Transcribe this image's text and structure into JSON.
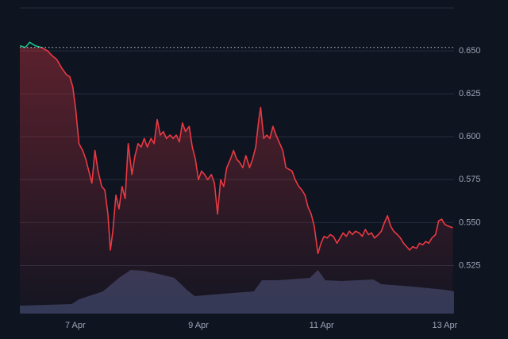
{
  "chart_data": {
    "type": "line",
    "xlim": [
      6.1,
      13.15
    ],
    "xticks": [
      {
        "value": 7,
        "label": "7 Apr"
      },
      {
        "value": 9,
        "label": "9 Apr"
      },
      {
        "value": 11,
        "label": "11 Apr"
      },
      {
        "value": 13,
        "label": "13 Apr"
      }
    ],
    "ylim": [
      0.497,
      0.675
    ],
    "yticks": [
      {
        "value": 0.525,
        "label": "0.525"
      },
      {
        "value": 0.55,
        "label": "0.550"
      },
      {
        "value": 0.575,
        "label": "0.575"
      },
      {
        "value": 0.6,
        "label": "0.600"
      },
      {
        "value": 0.625,
        "label": "0.625"
      },
      {
        "value": 0.65,
        "label": "0.650"
      }
    ],
    "grid": true,
    "reference": 0.652,
    "up_color": "#16c784",
    "series": [
      {
        "color": "#ea3943",
        "x": [
          6.1,
          6.19,
          6.26,
          6.35,
          6.45,
          6.55,
          6.63,
          6.7,
          6.78,
          6.86,
          6.91,
          6.96,
          7.01,
          7.06,
          7.12,
          7.17,
          7.22,
          7.27,
          7.32,
          7.37,
          7.43,
          7.48,
          7.53,
          7.57,
          7.61,
          7.66,
          7.71,
          7.76,
          7.81,
          7.86,
          7.92,
          7.97,
          8.02,
          8.07,
          8.12,
          8.17,
          8.23,
          8.28,
          8.33,
          8.38,
          8.43,
          8.48,
          8.54,
          8.59,
          8.64,
          8.69,
          8.74,
          8.79,
          8.85,
          8.9,
          8.95,
          9.0,
          9.05,
          9.1,
          9.15,
          9.21,
          9.26,
          9.31,
          9.36,
          9.41,
          9.46,
          9.52,
          9.57,
          9.62,
          9.67,
          9.72,
          9.77,
          9.83,
          9.88,
          9.93,
          9.98,
          10.01,
          10.06,
          10.11,
          10.16,
          10.21,
          10.26,
          10.32,
          10.37,
          10.42,
          10.47,
          10.52,
          10.57,
          10.63,
          10.68,
          10.73,
          10.78,
          10.83,
          10.88,
          10.94,
          10.99,
          11.04,
          11.09,
          11.14,
          11.19,
          11.25,
          11.3,
          11.35,
          11.4,
          11.45,
          11.5,
          11.55,
          11.61,
          11.66,
          11.71,
          11.76,
          11.81,
          11.86,
          11.92,
          11.97,
          12.02,
          12.07,
          12.12,
          12.17,
          12.23,
          12.28,
          12.33,
          12.38,
          12.43,
          12.48,
          12.54,
          12.59,
          12.64,
          12.69,
          12.74,
          12.79,
          12.85,
          12.9,
          12.95,
          13.0,
          13.05,
          13.13
        ],
        "values": [
          0.653,
          0.652,
          0.655,
          0.653,
          0.652,
          0.65,
          0.647,
          0.645,
          0.64,
          0.636,
          0.635,
          0.629,
          0.615,
          0.596,
          0.592,
          0.587,
          0.58,
          0.573,
          0.592,
          0.58,
          0.571,
          0.569,
          0.555,
          0.534,
          0.545,
          0.566,
          0.558,
          0.571,
          0.564,
          0.596,
          0.578,
          0.589,
          0.596,
          0.594,
          0.599,
          0.594,
          0.599,
          0.596,
          0.61,
          0.601,
          0.603,
          0.599,
          0.601,
          0.599,
          0.601,
          0.597,
          0.608,
          0.603,
          0.606,
          0.594,
          0.587,
          0.575,
          0.58,
          0.578,
          0.575,
          0.578,
          0.573,
          0.555,
          0.575,
          0.571,
          0.582,
          0.587,
          0.592,
          0.587,
          0.585,
          0.582,
          0.589,
          0.582,
          0.587,
          0.594,
          0.61,
          0.617,
          0.599,
          0.601,
          0.599,
          0.606,
          0.601,
          0.596,
          0.592,
          0.582,
          0.581,
          0.58,
          0.575,
          0.571,
          0.569,
          0.566,
          0.559,
          0.555,
          0.548,
          0.532,
          0.538,
          0.542,
          0.541,
          0.543,
          0.542,
          0.538,
          0.541,
          0.544,
          0.542,
          0.545,
          0.543,
          0.545,
          0.544,
          0.542,
          0.546,
          0.543,
          0.544,
          0.541,
          0.543,
          0.545,
          0.55,
          0.554,
          0.548,
          0.545,
          0.543,
          0.541,
          0.538,
          0.536,
          0.534,
          0.536,
          0.535,
          0.538,
          0.537,
          0.539,
          0.538,
          0.541,
          0.543,
          0.551,
          0.552,
          0.549,
          0.548,
          0.547
        ]
      }
    ],
    "volume": {
      "color": "#3b4668",
      "x": [
        6.1,
        6.94,
        7.06,
        7.45,
        7.71,
        7.9,
        8.1,
        8.35,
        8.61,
        8.81,
        8.94,
        9.39,
        9.9,
        10.03,
        10.29,
        10.81,
        10.94,
        11.06,
        11.32,
        11.84,
        11.97,
        12.48,
        13.0,
        13.15
      ],
      "values": [
        10,
        12,
        18,
        28,
        45,
        55,
        54,
        50,
        45,
        30,
        22,
        25,
        28,
        42,
        42,
        45,
        55,
        42,
        41,
        43,
        37,
        34,
        30,
        28
      ]
    }
  }
}
